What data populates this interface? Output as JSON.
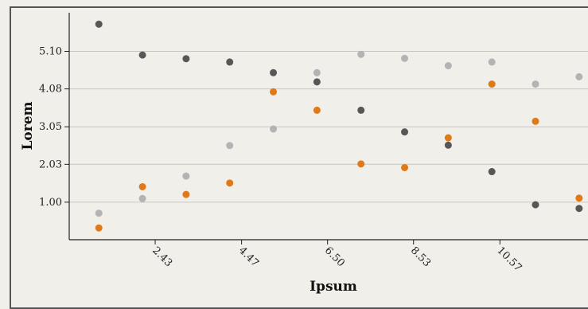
{
  "chart_data": {
    "type": "scatter",
    "xlabel": "Ipsum",
    "ylabel": "Lorem",
    "x_ticks": [
      2.43,
      4.47,
      6.5,
      8.53,
      10.57
    ],
    "x_tick_labels": [
      "2.43",
      "4.47",
      "6.50",
      "8.53",
      "10.57"
    ],
    "y_ticks": [
      1.0,
      2.03,
      3.05,
      4.08,
      5.1
    ],
    "y_tick_labels": [
      "1.00",
      "2.03",
      "3.05",
      "4.08",
      "5.10"
    ],
    "xlim": [
      0.4,
      12.65
    ],
    "ylim": [
      -0.02,
      6.15
    ],
    "grid": "horizontal",
    "series": [
      {
        "color": "#575757",
        "points": [
          [
            1.1,
            5.84
          ],
          [
            2.13,
            5.0
          ],
          [
            3.16,
            4.9
          ],
          [
            4.19,
            4.81
          ],
          [
            5.22,
            4.52
          ],
          [
            6.25,
            4.27
          ],
          [
            7.29,
            3.5
          ],
          [
            8.32,
            2.91
          ],
          [
            9.35,
            2.55
          ],
          [
            10.38,
            1.83
          ],
          [
            11.41,
            0.93
          ],
          [
            12.44,
            0.83
          ]
        ]
      },
      {
        "color": "#b3b3b3",
        "points": [
          [
            1.1,
            0.7
          ],
          [
            2.13,
            1.1
          ],
          [
            3.16,
            1.71
          ],
          [
            4.19,
            2.54
          ],
          [
            5.22,
            2.99
          ],
          [
            6.25,
            4.52
          ],
          [
            7.29,
            5.02
          ],
          [
            8.32,
            4.91
          ],
          [
            9.35,
            4.71
          ],
          [
            10.38,
            4.81
          ],
          [
            11.41,
            4.21
          ],
          [
            12.44,
            4.41
          ]
        ]
      },
      {
        "color": "#e07918",
        "points": [
          [
            1.1,
            0.3
          ],
          [
            2.13,
            1.42
          ],
          [
            3.16,
            1.21
          ],
          [
            4.19,
            1.52
          ],
          [
            5.22,
            4.0
          ],
          [
            6.25,
            3.5
          ],
          [
            7.29,
            2.04
          ],
          [
            8.32,
            1.94
          ],
          [
            9.35,
            2.75
          ],
          [
            10.38,
            4.21
          ],
          [
            11.41,
            3.2
          ],
          [
            12.44,
            1.11
          ]
        ]
      }
    ]
  }
}
